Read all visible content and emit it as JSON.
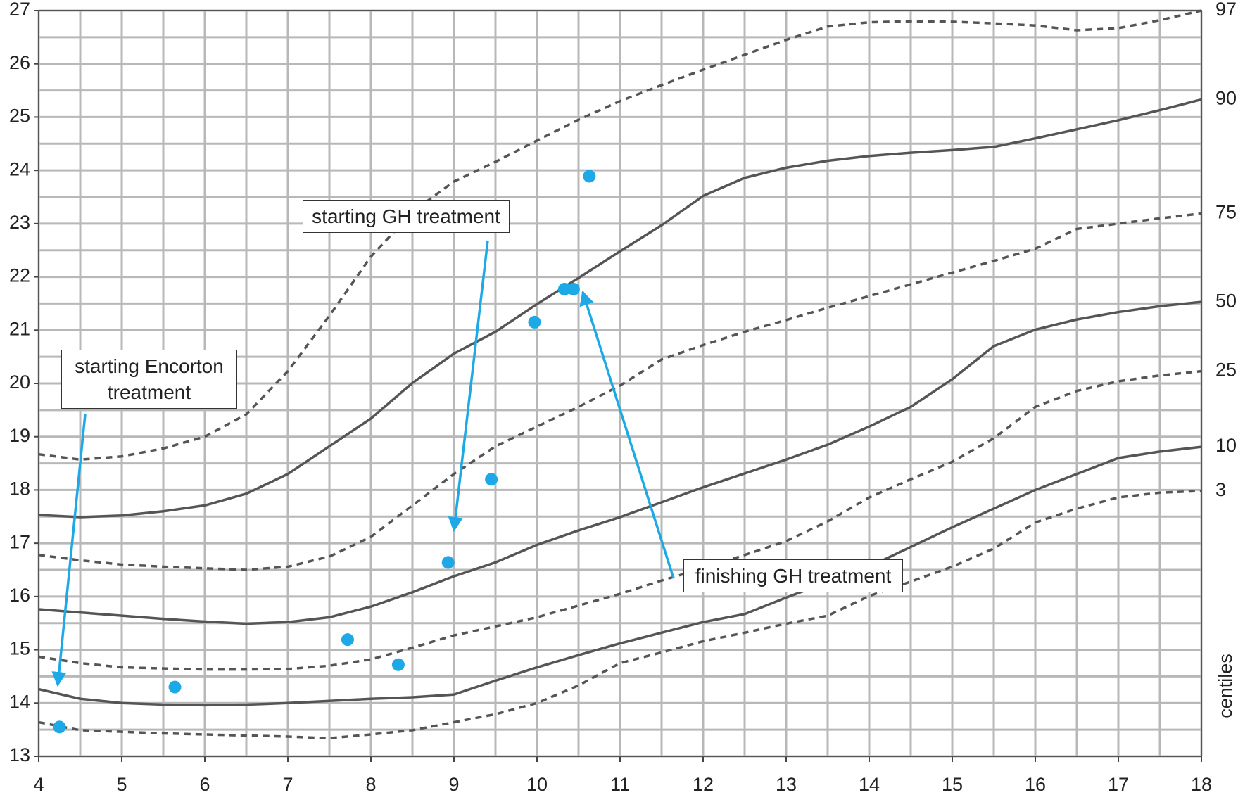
{
  "chart_data": {
    "type": "line",
    "x": [
      4,
      4.5,
      5,
      5.5,
      6,
      6.5,
      7,
      7.5,
      8,
      8.5,
      9,
      9.5,
      10,
      10.5,
      11,
      11.5,
      12,
      12.5,
      13,
      13.5,
      14,
      14.5,
      15,
      15.5,
      16,
      16.5,
      17,
      17.5,
      18
    ],
    "series": [
      {
        "name": "97",
        "color": "#555555",
        "dashed": true,
        "values": [
          18.67,
          18.57,
          18.63,
          18.78,
          19.0,
          19.42,
          20.23,
          21.27,
          22.38,
          23.22,
          23.79,
          24.16,
          24.56,
          24.95,
          25.3,
          25.6,
          25.89,
          26.17,
          26.45,
          26.7,
          26.78,
          26.8,
          26.79,
          26.76,
          26.72,
          26.63,
          26.67,
          26.82,
          27.0
        ]
      },
      {
        "name": "90",
        "color": "#555555",
        "dashed": false,
        "values": [
          17.53,
          17.49,
          17.52,
          17.6,
          17.71,
          17.93,
          18.3,
          18.82,
          19.34,
          20.01,
          20.56,
          20.97,
          21.49,
          21.98,
          22.48,
          22.97,
          23.52,
          23.86,
          24.05,
          24.18,
          24.27,
          24.33,
          24.38,
          24.44,
          24.6,
          24.77,
          24.94,
          25.13,
          25.33
        ]
      },
      {
        "name": "75",
        "color": "#555555",
        "dashed": true,
        "values": [
          16.78,
          16.68,
          16.6,
          16.56,
          16.53,
          16.5,
          16.56,
          16.75,
          17.12,
          17.71,
          18.3,
          18.82,
          19.19,
          19.56,
          19.96,
          20.45,
          20.72,
          20.97,
          21.19,
          21.42,
          21.64,
          21.86,
          22.08,
          22.3,
          22.53,
          22.9,
          23.0,
          23.1,
          23.19
        ]
      },
      {
        "name": "50",
        "color": "#555555",
        "dashed": false,
        "values": [
          15.76,
          15.7,
          15.64,
          15.58,
          15.53,
          15.49,
          15.52,
          15.61,
          15.81,
          16.08,
          16.38,
          16.64,
          16.97,
          17.24,
          17.49,
          17.77,
          18.05,
          18.31,
          18.57,
          18.85,
          19.19,
          19.56,
          20.08,
          20.7,
          21.01,
          21.2,
          21.34,
          21.45,
          21.53
        ]
      },
      {
        "name": "25",
        "color": "#555555",
        "dashed": true,
        "values": [
          14.87,
          14.75,
          14.67,
          14.65,
          14.63,
          14.63,
          14.64,
          14.7,
          14.82,
          15.04,
          15.27,
          15.44,
          15.61,
          15.83,
          16.05,
          16.3,
          16.53,
          16.78,
          17.04,
          17.41,
          17.86,
          18.2,
          18.53,
          18.97,
          19.56,
          19.86,
          20.04,
          20.15,
          20.23
        ]
      },
      {
        "name": "10",
        "color": "#555555",
        "dashed": false,
        "values": [
          14.26,
          14.08,
          14.0,
          13.97,
          13.96,
          13.97,
          14.0,
          14.04,
          14.08,
          14.11,
          14.16,
          14.42,
          14.67,
          14.9,
          15.12,
          15.32,
          15.52,
          15.67,
          15.98,
          16.27,
          16.56,
          16.93,
          17.3,
          17.65,
          18.0,
          18.3,
          18.6,
          18.72,
          18.81
        ]
      },
      {
        "name": "3",
        "color": "#555555",
        "dashed": true,
        "values": [
          13.64,
          13.49,
          13.46,
          13.43,
          13.41,
          13.39,
          13.37,
          13.34,
          13.41,
          13.49,
          13.64,
          13.79,
          14.0,
          14.33,
          14.75,
          14.95,
          15.16,
          15.32,
          15.49,
          15.64,
          16.01,
          16.28,
          16.56,
          16.9,
          17.39,
          17.65,
          17.86,
          17.95,
          17.98
        ]
      }
    ],
    "points": {
      "color": "#1ca9e6",
      "x": [
        4.25,
        5.64,
        7.72,
        8.33,
        8.93,
        9.45,
        9.97,
        10.33,
        10.44,
        10.63
      ],
      "values": [
        13.55,
        14.3,
        15.19,
        14.72,
        16.64,
        18.2,
        21.15,
        21.77,
        21.77,
        23.89
      ]
    },
    "right_axis_label": "centiles",
    "annotations": [
      "starting Encorton treatment",
      "starting GH treatment",
      "finishing GH treatment"
    ],
    "xlim": [
      4,
      18
    ],
    "ylim": [
      13,
      27
    ],
    "xticks": [
      4,
      5,
      6,
      7,
      8,
      9,
      10,
      11,
      12,
      13,
      14,
      15,
      16,
      17,
      18
    ],
    "yticks": [
      13,
      14,
      15,
      16,
      17,
      18,
      19,
      20,
      21,
      22,
      23,
      24,
      25,
      26,
      27
    ],
    "grid": true,
    "minor_grid": 0.5
  }
}
